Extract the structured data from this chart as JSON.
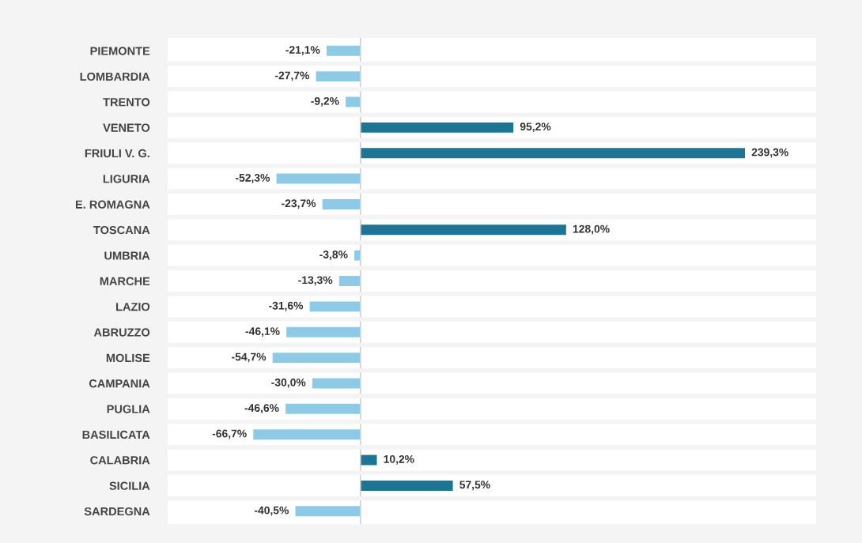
{
  "chart_data": {
    "type": "bar",
    "orientation": "horizontal",
    "categories": [
      "PIEMONTE",
      "LOMBARDIA",
      "TRENTO",
      "VENETO",
      "FRIULI V. G.",
      "LIGURIA",
      "E. ROMAGNA",
      "TOSCANA",
      "UMBRIA",
      "MARCHE",
      "LAZIO",
      "ABRUZZO",
      "MOLISE",
      "CAMPANIA",
      "PUGLIA",
      "BASILICATA",
      "CALABRIA",
      "SICILIA",
      "SARDEGNA"
    ],
    "values": [
      -21.1,
      -27.7,
      -9.2,
      95.2,
      239.3,
      -52.3,
      -23.7,
      128.0,
      -3.8,
      -13.3,
      -31.6,
      -46.1,
      -54.7,
      -30.0,
      -46.6,
      -66.7,
      10.2,
      57.5,
      -40.5
    ],
    "value_labels": [
      "-21,1%",
      "-27,7%",
      "-9,2%",
      "95,2%",
      "239,3%",
      "-52,3%",
      "-23,7%",
      "128,0%",
      "-3,8%",
      "-13,3%",
      "-31,6%",
      "-46,1%",
      "-54,7%",
      "-30,0%",
      "-46,6%",
      "-66,7%",
      "10,2%",
      "57,5%",
      "-40,5%"
    ],
    "colors": [
      "#8ecae6",
      "#8ecae6",
      "#8ecae6",
      "#1d7595",
      "#1d7595",
      "#8ecae6",
      "#8ecae6",
      "#1d7595",
      "#8ecae6",
      "#8ecae6",
      "#8ecae6",
      "#8ecae6",
      "#8ecae6",
      "#8ecae6",
      "#8ecae6",
      "#8ecae6",
      "#1d7595",
      "#1d7595",
      "#8ecae6"
    ],
    "xlim": [
      -120,
      283.6
    ],
    "ref_lines": [
      {
        "axis": "x",
        "value": 0,
        "color": "#d0d0d0"
      }
    ],
    "grid": "y",
    "tick_labels": "y",
    "legend": false
  }
}
